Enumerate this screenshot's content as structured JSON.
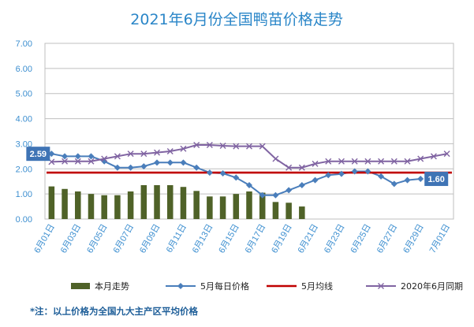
{
  "chart_data": {
    "type": "bar",
    "title": "2021年6月份全国鸭苗价格走势",
    "note": "*注：以上价格为全国九大主产区平均价格",
    "ylim": [
      0,
      7
    ],
    "yticks": [
      "0.00",
      "1.00",
      "2.00",
      "3.00",
      "4.00",
      "5.00",
      "6.00",
      "7.00"
    ],
    "grid": true,
    "legend_position": "bottom",
    "categories": [
      "6月01日",
      "6月02日",
      "6月03日",
      "6月04日",
      "6月05日",
      "6月06日",
      "6月07日",
      "6月08日",
      "6月09日",
      "6月10日",
      "6月11日",
      "6月12日",
      "6月13日",
      "6月14日",
      "6月15日",
      "6月16日",
      "6月17日",
      "6月18日",
      "6月19日",
      "6月20日",
      "6月21日",
      "6月22日",
      "6月23日",
      "6月24日",
      "6月25日",
      "6月26日",
      "6月27日",
      "6月28日",
      "6月29日",
      "6月30日",
      "7月01日"
    ],
    "xtick_labels": [
      "6月01日",
      "6月03日",
      "6月05日",
      "6月07日",
      "6月09日",
      "6月11日",
      "6月13日",
      "6月15日",
      "6月17日",
      "6月19日",
      "6月21日",
      "6月23日",
      "6月25日",
      "6月27日",
      "6月29日",
      "7月01日"
    ],
    "series": [
      {
        "name": "本月走势",
        "type": "bar",
        "color": "#4f6228",
        "values": [
          1.3,
          1.2,
          1.1,
          1.0,
          0.95,
          0.95,
          1.1,
          1.35,
          1.35,
          1.35,
          1.28,
          1.12,
          0.9,
          0.9,
          1.0,
          1.1,
          1.05,
          0.68,
          0.65,
          0.5,
          null,
          null,
          null,
          null,
          null,
          null,
          null,
          null,
          null,
          null,
          null
        ]
      },
      {
        "name": "5月每日价格",
        "type": "line",
        "color": "#4a7ebb",
        "marker": "diamond",
        "values": [
          2.6,
          2.5,
          2.5,
          2.5,
          2.3,
          2.05,
          2.05,
          2.1,
          2.25,
          2.25,
          2.25,
          2.05,
          1.85,
          1.82,
          1.65,
          1.35,
          0.95,
          0.95,
          1.15,
          1.35,
          1.55,
          1.75,
          1.8,
          1.9,
          1.9,
          1.7,
          1.4,
          1.55,
          1.6,
          null,
          null
        ]
      },
      {
        "name": "5月均线",
        "type": "line",
        "color": "#c00000",
        "values": [
          1.85,
          1.85,
          1.85,
          1.85,
          1.85,
          1.85,
          1.85,
          1.85,
          1.85,
          1.85,
          1.85,
          1.85,
          1.85,
          1.85,
          1.85,
          1.85,
          1.85,
          1.85,
          1.85,
          1.85,
          1.85,
          1.85,
          1.85,
          1.85,
          1.85,
          1.85,
          1.85,
          1.85,
          1.85,
          1.85,
          1.85
        ]
      },
      {
        "name": "2020年6月同期",
        "type": "line",
        "color": "#8064a2",
        "marker": "x",
        "values": [
          2.28,
          2.3,
          2.3,
          2.3,
          2.4,
          2.5,
          2.6,
          2.6,
          2.65,
          2.7,
          2.8,
          2.95,
          2.95,
          2.92,
          2.9,
          2.9,
          2.9,
          2.4,
          2.05,
          2.05,
          2.2,
          2.3,
          2.3,
          2.3,
          2.3,
          2.3,
          2.3,
          2.3,
          2.4,
          2.5,
          2.6
        ]
      }
    ],
    "annotations": [
      {
        "text": "2.59",
        "series": "5月每日价格",
        "index": 0,
        "side": "left",
        "color": "#3f74b5"
      },
      {
        "text": "1.60",
        "series": "5月每日价格",
        "index": 28,
        "side": "right",
        "color": "#3f74b5"
      }
    ]
  }
}
